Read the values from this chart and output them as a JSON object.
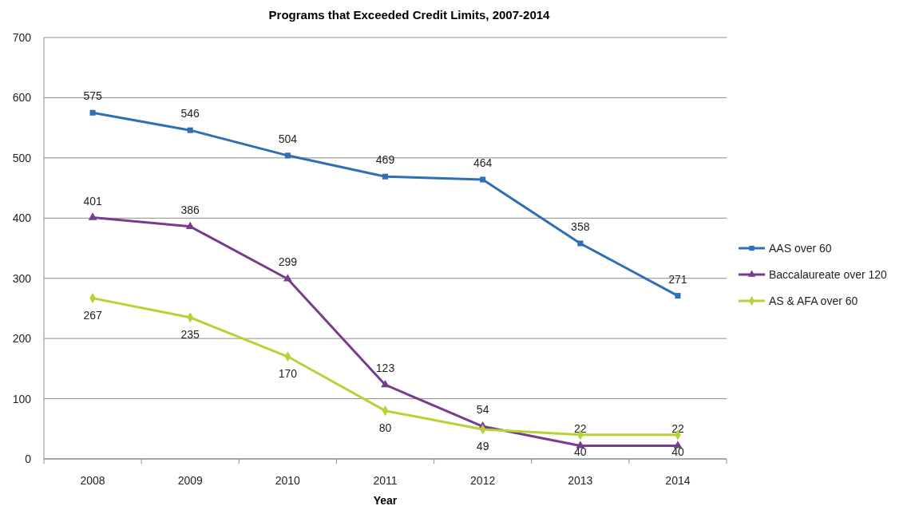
{
  "chart_data": {
    "type": "line",
    "title": "Programs that Exceeded Credit Limits, 2007-2014",
    "xlabel": "Year",
    "categories": [
      "2008",
      "2009",
      "2010",
      "2011",
      "2012",
      "2013",
      "2014"
    ],
    "series": [
      {
        "name": "AAS over 60",
        "color": "#2e6fb5",
        "marker": "square",
        "values": [
          575,
          546,
          504,
          469,
          464,
          358,
          271
        ]
      },
      {
        "name": "Baccalaureate over 120",
        "color": "#773c8e",
        "marker": "triangle",
        "values": [
          401,
          386,
          299,
          123,
          54,
          22,
          22
        ]
      },
      {
        "name": "AS & AFA over 60",
        "color": "#b4d334",
        "marker": "diamond",
        "values": [
          267,
          235,
          170,
          80,
          49,
          40,
          40
        ]
      }
    ],
    "ylim": [
      0,
      700
    ],
    "yticks": [
      0,
      100,
      200,
      300,
      400,
      500,
      600,
      700
    ],
    "grid": "y",
    "legend": "right",
    "data_labels": true
  }
}
